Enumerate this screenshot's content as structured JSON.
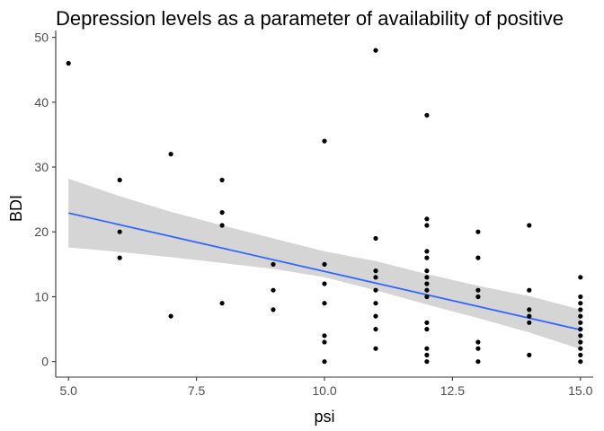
{
  "chart_data": {
    "type": "scatter",
    "title": "Depression levels as a parameter of availability of positive",
    "xlabel": "psi",
    "ylabel": "BDI",
    "xlim": [
      4.75,
      15.25
    ],
    "ylim": [
      -2.4,
      50.5
    ],
    "x_ticks": [
      5.0,
      7.5,
      10.0,
      12.5,
      15.0
    ],
    "x_tick_labels": [
      "5.0",
      "7.5",
      "10.0",
      "12.5",
      "15.0"
    ],
    "y_ticks": [
      0,
      10,
      20,
      30,
      40,
      50
    ],
    "y_tick_labels": [
      "0",
      "10",
      "20",
      "30",
      "40",
      "50"
    ],
    "grid": false,
    "colors": {
      "point": "#000000",
      "fit_line": "#3366FF",
      "confidence_band": "#BEBEBE",
      "axis": "#333333"
    },
    "points": [
      {
        "x": 5,
        "y": 46
      },
      {
        "x": 6,
        "y": 28
      },
      {
        "x": 6,
        "y": 20
      },
      {
        "x": 6,
        "y": 16
      },
      {
        "x": 7,
        "y": 32
      },
      {
        "x": 7,
        "y": 7
      },
      {
        "x": 8,
        "y": 28
      },
      {
        "x": 8,
        "y": 23
      },
      {
        "x": 8,
        "y": 21
      },
      {
        "x": 8,
        "y": 9
      },
      {
        "x": 9,
        "y": 15
      },
      {
        "x": 9,
        "y": 11
      },
      {
        "x": 9,
        "y": 8
      },
      {
        "x": 10,
        "y": 34
      },
      {
        "x": 10,
        "y": 15
      },
      {
        "x": 10,
        "y": 12
      },
      {
        "x": 10,
        "y": 9
      },
      {
        "x": 10,
        "y": 4
      },
      {
        "x": 10,
        "y": 3
      },
      {
        "x": 10,
        "y": 0
      },
      {
        "x": 11,
        "y": 48
      },
      {
        "x": 11,
        "y": 19
      },
      {
        "x": 11,
        "y": 14
      },
      {
        "x": 11,
        "y": 13
      },
      {
        "x": 11,
        "y": 11
      },
      {
        "x": 11,
        "y": 9
      },
      {
        "x": 11,
        "y": 7
      },
      {
        "x": 11,
        "y": 5
      },
      {
        "x": 11,
        "y": 2
      },
      {
        "x": 12,
        "y": 38
      },
      {
        "x": 12,
        "y": 22
      },
      {
        "x": 12,
        "y": 21
      },
      {
        "x": 12,
        "y": 17
      },
      {
        "x": 12,
        "y": 16
      },
      {
        "x": 12,
        "y": 14
      },
      {
        "x": 12,
        "y": 13
      },
      {
        "x": 12,
        "y": 12
      },
      {
        "x": 12,
        "y": 11
      },
      {
        "x": 12,
        "y": 10
      },
      {
        "x": 12,
        "y": 6
      },
      {
        "x": 12,
        "y": 5
      },
      {
        "x": 12,
        "y": 2
      },
      {
        "x": 12,
        "y": 1
      },
      {
        "x": 12,
        "y": 0
      },
      {
        "x": 13,
        "y": 20
      },
      {
        "x": 13,
        "y": 16
      },
      {
        "x": 13,
        "y": 11
      },
      {
        "x": 13,
        "y": 10
      },
      {
        "x": 13,
        "y": 3
      },
      {
        "x": 13,
        "y": 2
      },
      {
        "x": 13,
        "y": 0
      },
      {
        "x": 14,
        "y": 21
      },
      {
        "x": 14,
        "y": 11
      },
      {
        "x": 14,
        "y": 8
      },
      {
        "x": 14,
        "y": 7
      },
      {
        "x": 14,
        "y": 6
      },
      {
        "x": 14,
        "y": 1
      },
      {
        "x": 15,
        "y": 13
      },
      {
        "x": 15,
        "y": 10
      },
      {
        "x": 15,
        "y": 9
      },
      {
        "x": 15,
        "y": 8
      },
      {
        "x": 15,
        "y": 7
      },
      {
        "x": 15,
        "y": 6
      },
      {
        "x": 15,
        "y": 5
      },
      {
        "x": 15,
        "y": 4
      },
      {
        "x": 15,
        "y": 3
      },
      {
        "x": 15,
        "y": 2
      },
      {
        "x": 15,
        "y": 1
      },
      {
        "x": 15,
        "y": 0
      }
    ],
    "fit_line": {
      "x": [
        5,
        15
      ],
      "y": [
        22.9,
        4.9
      ]
    },
    "confidence_band": {
      "x": [
        5,
        6,
        7,
        8,
        9,
        10,
        11,
        12,
        13,
        14,
        15
      ],
      "upper": [
        28.2,
        25.5,
        23.1,
        21.0,
        19.0,
        17.0,
        15.5,
        13.5,
        11.7,
        10.1,
        8.0
      ],
      "lower": [
        17.6,
        16.9,
        16.1,
        15.2,
        14.3,
        13.0,
        11.0,
        8.8,
        6.7,
        4.5,
        1.9
      ]
    }
  }
}
